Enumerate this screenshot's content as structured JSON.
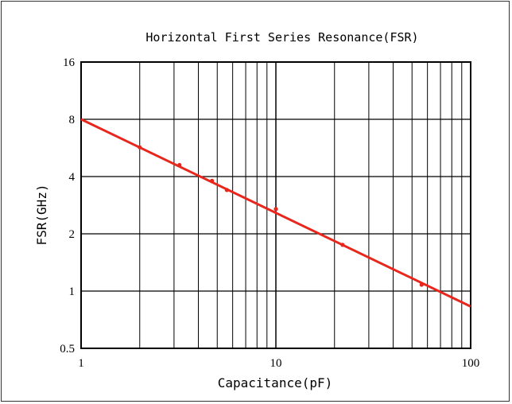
{
  "chart_data": {
    "type": "line",
    "title": "Horizontal First Series Resonance(FSR)",
    "xlabel": "Capacitance(pF)",
    "ylabel": "FSR(GHz)",
    "x_scale": "log",
    "y_scale": "log",
    "xlim": [
      1,
      100
    ],
    "ylim": [
      0.5,
      16
    ],
    "x_ticks": [
      1,
      10,
      100
    ],
    "x_tick_labels": [
      "1",
      "10",
      "100"
    ],
    "y_ticks": [
      0.5,
      1,
      2,
      4,
      8,
      16
    ],
    "y_tick_labels": [
      "0.5",
      "1",
      "2",
      "4",
      "8",
      "16"
    ],
    "grid": true,
    "series": [
      {
        "color": "#e8261c",
        "x": [
          1,
          100
        ],
        "y": [
          8,
          0.83
        ],
        "markers_x": [
          2,
          3.2,
          4.7,
          5.6,
          10,
          22,
          56
        ],
        "markers_y": [
          5.7,
          4.6,
          3.8,
          3.4,
          2.7,
          1.75,
          1.08
        ]
      }
    ]
  }
}
